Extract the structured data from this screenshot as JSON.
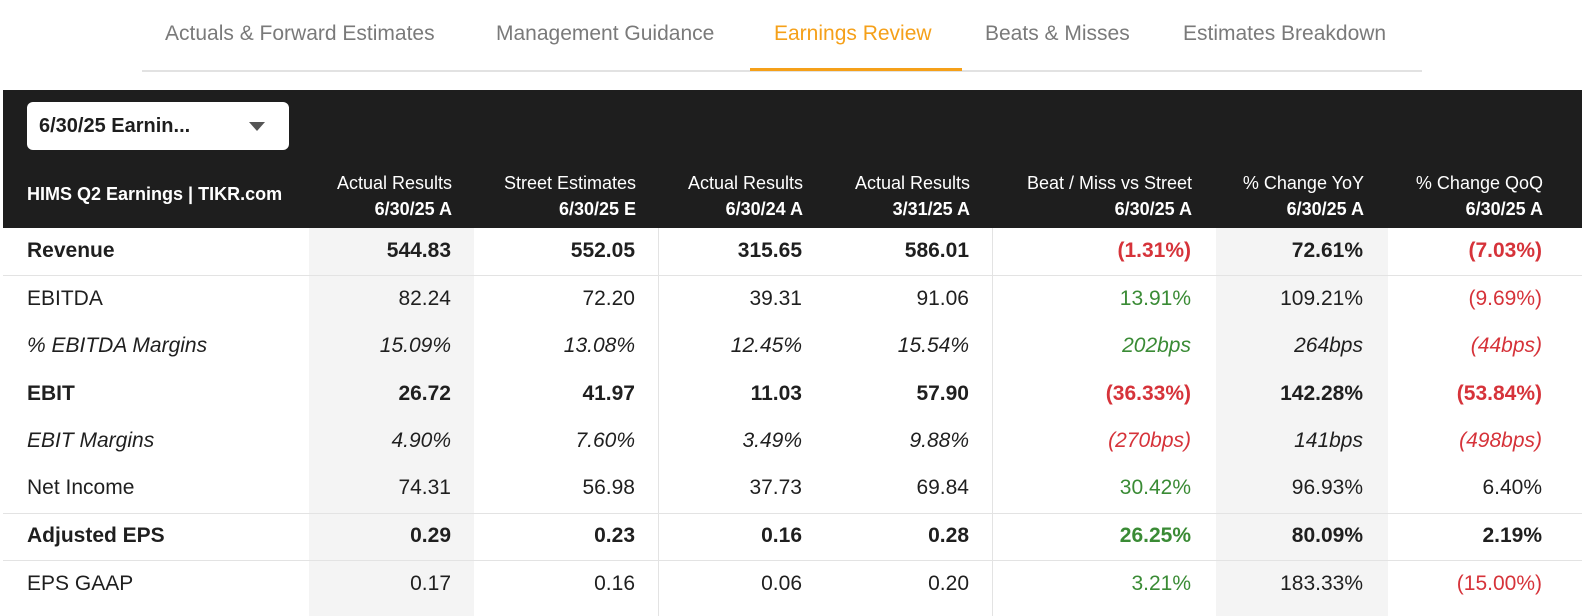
{
  "tabs": [
    {
      "label": "Actuals & Forward Estimates"
    },
    {
      "label": "Management Guidance"
    },
    {
      "label": "Earnings Review"
    },
    {
      "label": "Beats & Misses"
    },
    {
      "label": "Estimates Breakdown"
    }
  ],
  "active_tab": "Earnings Review",
  "colors": {
    "accent": "#f5a019",
    "positive": "#3a8b35",
    "negative": "#d6333a",
    "header_bg": "#1e1e1e"
  },
  "period_select": {
    "value": "6/30/25 Earnin...",
    "icon": "chevron-down-icon"
  },
  "table": {
    "title": "HIMS Q2 Earnings | TIKR.com",
    "columns": [
      {
        "line1": "Actual Results",
        "line2": "6/30/25 A"
      },
      {
        "line1": "Street Estimates",
        "line2": "6/30/25 E"
      },
      {
        "line1": "Actual Results",
        "line2": "6/30/24 A"
      },
      {
        "line1": "Actual Results",
        "line2": "3/31/25 A"
      },
      {
        "line1": "Beat / Miss vs Street",
        "line2": "6/30/25 A"
      },
      {
        "line1": "% Change YoY",
        "line2": "6/30/25 A"
      },
      {
        "line1": "% Change QoQ",
        "line2": "6/30/25 A"
      }
    ],
    "rows": [
      {
        "label": "Revenue",
        "values": [
          "544.83",
          "552.05",
          "315.65",
          "586.01",
          "(1.31%)",
          "72.61%",
          "(7.03%)"
        ]
      },
      {
        "label": "EBITDA",
        "values": [
          "82.24",
          "72.20",
          "39.31",
          "91.06",
          "13.91%",
          "109.21%",
          "(9.69%)"
        ]
      },
      {
        "label": "% EBITDA Margins",
        "values": [
          "15.09%",
          "13.08%",
          "12.45%",
          "15.54%",
          "202bps",
          "264bps",
          "(44bps)"
        ]
      },
      {
        "label": "EBIT",
        "values": [
          "26.72",
          "41.97",
          "11.03",
          "57.90",
          "(36.33%)",
          "142.28%",
          "(53.84%)"
        ]
      },
      {
        "label": "EBIT Margins",
        "values": [
          "4.90%",
          "7.60%",
          "3.49%",
          "9.88%",
          "(270bps)",
          "141bps",
          "(498bps)"
        ]
      },
      {
        "label": "Net Income",
        "values": [
          "74.31",
          "56.98",
          "37.73",
          "69.84",
          "30.42%",
          "96.93%",
          "6.40%"
        ]
      },
      {
        "label": "Adjusted EPS",
        "values": [
          "0.29",
          "0.23",
          "0.16",
          "0.28",
          "26.25%",
          "80.09%",
          "2.19%"
        ]
      },
      {
        "label": "EPS GAAP",
        "values": [
          "0.17",
          "0.16",
          "0.06",
          "0.20",
          "3.21%",
          "183.33%",
          "(15.00%)"
        ]
      }
    ]
  }
}
